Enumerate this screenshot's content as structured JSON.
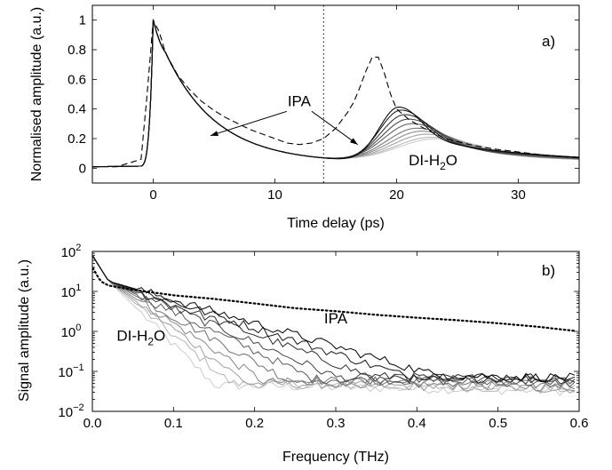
{
  "chart_data": [
    {
      "type": "line",
      "panel_label": "a)",
      "xlabel": "Time delay (ps)",
      "ylabel": "Normalised amplitude (a.u.)",
      "xlim": [
        -5,
        35
      ],
      "ylim": [
        -0.1,
        1.1
      ],
      "xticks": [
        0,
        10,
        20,
        30
      ],
      "yticks": [
        0,
        0.2,
        0.4,
        0.6,
        0.8,
        1
      ],
      "ytick_labels": [
        "0",
        "0.2",
        "0.4",
        "0.6",
        "0.8",
        "1"
      ],
      "vline_x": 14,
      "annotations": [
        {
          "text": "IPA",
          "x": 12,
          "y": 0.42,
          "arrows_to": [
            [
              4.7,
              0.22
            ],
            [
              16.8,
              0.16
            ]
          ]
        },
        {
          "text": "DI-H",
          "sub": "2",
          "tail": "O",
          "x": 23,
          "y": 0.02
        }
      ],
      "series": [
        {
          "style": "dashed",
          "x": [
            -5,
            -3,
            -1,
            -0.5,
            0,
            0.5,
            1,
            2,
            3,
            4,
            5,
            6,
            7,
            8,
            9,
            10,
            11,
            12,
            13,
            14,
            15,
            16,
            16.5,
            17,
            17.5,
            18,
            18.5,
            19,
            19.5,
            20,
            21,
            22,
            23,
            24,
            25,
            26,
            28,
            30,
            32,
            35
          ],
          "y": [
            0.01,
            0.01,
            0.06,
            0.5,
            1.0,
            0.92,
            0.78,
            0.63,
            0.53,
            0.45,
            0.39,
            0.34,
            0.3,
            0.26,
            0.23,
            0.2,
            0.17,
            0.16,
            0.17,
            0.2,
            0.27,
            0.38,
            0.45,
            0.55,
            0.66,
            0.75,
            0.75,
            0.64,
            0.5,
            0.4,
            0.33,
            0.28,
            0.24,
            0.2,
            0.18,
            0.16,
            0.13,
            0.11,
            0.09,
            0.07
          ]
        },
        {
          "style": "solid",
          "peak": 0.43,
          "peak_x": 20.2
        },
        {
          "style": "solid",
          "peak": 0.41,
          "peak_x": 20.4
        },
        {
          "style": "solid",
          "peak": 0.38,
          "peak_x": 20.7
        },
        {
          "style": "solid",
          "peak": 0.35,
          "peak_x": 21.0
        },
        {
          "style": "solid",
          "peak": 0.32,
          "peak_x": 21.3
        },
        {
          "style": "solid",
          "peak": 0.29,
          "peak_x": 21.7
        },
        {
          "style": "solid",
          "peak": 0.27,
          "peak_x": 22.1
        },
        {
          "style": "solid",
          "peak": 0.25,
          "peak_x": 22.5
        },
        {
          "style": "solid",
          "peak": 0.23,
          "peak_x": 22.9
        },
        {
          "style": "solid",
          "peak": 0.22,
          "peak_x": 23.3
        }
      ]
    },
    {
      "type": "line",
      "panel_label": "b)",
      "xlabel": "Frequency (THz)",
      "ylabel": "Signal amplitude (a.u.)",
      "yscale": "log",
      "xlim": [
        0,
        0.6
      ],
      "ylim": [
        0.01,
        100
      ],
      "xticks": [
        0,
        0.1,
        0.2,
        0.3,
        0.4,
        0.5,
        0.6
      ],
      "xtick_labels": [
        "0.0",
        "0.1",
        "0.2",
        "0.3",
        "0.4",
        "0.5",
        "0.6"
      ],
      "yticks": [
        0.01,
        0.1,
        1,
        10,
        100
      ],
      "ytick_labels": [
        "10",
        "10",
        "10",
        "10",
        "10"
      ],
      "ytick_exponents": [
        "−2",
        "−1",
        "0",
        "1",
        "2"
      ],
      "annotations": [
        {
          "text": "IPA",
          "x": 0.3,
          "y": 1.6
        },
        {
          "text": "DI-H",
          "sub": "2",
          "tail": "O",
          "x": 0.06,
          "y": 0.58
        }
      ],
      "series": [
        {
          "style": "dotted",
          "x": [
            0,
            0.01,
            0.02,
            0.05,
            0.1,
            0.15,
            0.2,
            0.25,
            0.3,
            0.35,
            0.4,
            0.45,
            0.5,
            0.55,
            0.6
          ],
          "y": [
            40,
            18,
            14,
            11,
            8,
            6.5,
            5,
            3.8,
            3.2,
            2.6,
            2.2,
            1.9,
            1.6,
            1.3,
            1.0
          ]
        },
        {
          "style": "solid",
          "knee_y": 0.08,
          "knee_x": 0.42
        },
        {
          "style": "solid",
          "knee_y": 0.08,
          "knee_x": 0.38
        },
        {
          "style": "solid",
          "knee_y": 0.075,
          "knee_x": 0.34
        },
        {
          "style": "solid",
          "knee_y": 0.07,
          "knee_x": 0.3
        },
        {
          "style": "solid",
          "knee_y": 0.065,
          "knee_x": 0.27
        },
        {
          "style": "solid",
          "knee_y": 0.06,
          "knee_x": 0.24
        },
        {
          "style": "solid",
          "knee_y": 0.055,
          "knee_x": 0.21
        },
        {
          "style": "solid",
          "knee_y": 0.05,
          "knee_x": 0.19
        },
        {
          "style": "solid",
          "knee_y": 0.05,
          "knee_x": 0.17
        },
        {
          "style": "solid",
          "knee_y": 0.045,
          "knee_x": 0.15
        }
      ]
    }
  ]
}
